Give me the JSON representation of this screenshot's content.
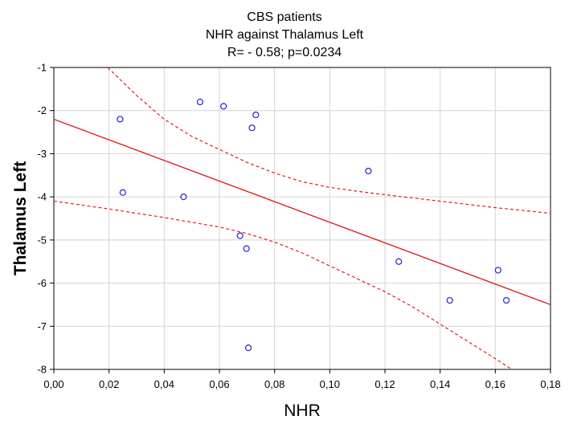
{
  "chart_data": {
    "type": "scatter",
    "title_lines": [
      "CBS patients",
      "NHR against Thalamus Left",
      "R= - 0.58; p=0.0234"
    ],
    "xlabel": "NHR",
    "ylabel": "Thalamus Left",
    "xlim": [
      0.0,
      0.18
    ],
    "ylim": [
      -8,
      -1
    ],
    "x_ticks": [
      0.0,
      0.02,
      0.04,
      0.06,
      0.08,
      0.1,
      0.12,
      0.14,
      0.16,
      0.18
    ],
    "x_tick_labels": [
      "0,00",
      "0,02",
      "0,04",
      "0,06",
      "0,08",
      "0,10",
      "0,12",
      "0,14",
      "0,16",
      "0,18"
    ],
    "y_ticks": [
      -1,
      -2,
      -3,
      -4,
      -5,
      -6,
      -7,
      -8
    ],
    "y_tick_labels": [
      "-1",
      "-2",
      "-3",
      "-4",
      "-5",
      "-6",
      "-7",
      "-8"
    ],
    "grid": true,
    "points": [
      {
        "x": 0.024,
        "y": -2.2
      },
      {
        "x": 0.025,
        "y": -3.9
      },
      {
        "x": 0.047,
        "y": -4.0
      },
      {
        "x": 0.053,
        "y": -1.8
      },
      {
        "x": 0.0615,
        "y": -1.9
      },
      {
        "x": 0.0675,
        "y": -4.9
      },
      {
        "x": 0.0698,
        "y": -5.2
      },
      {
        "x": 0.0705,
        "y": -7.5
      },
      {
        "x": 0.0718,
        "y": -2.4
      },
      {
        "x": 0.0732,
        "y": -2.1
      },
      {
        "x": 0.114,
        "y": -3.4
      },
      {
        "x": 0.125,
        "y": -5.5
      },
      {
        "x": 0.1435,
        "y": -6.4
      },
      {
        "x": 0.161,
        "y": -5.7
      },
      {
        "x": 0.164,
        "y": -6.4
      }
    ],
    "regression_line": [
      {
        "x": 0.0,
        "y": -2.2
      },
      {
        "x": 0.18,
        "y": -6.5
      }
    ],
    "confidence_upper": [
      {
        "x": 0.0195,
        "y": -1.0
      },
      {
        "x": 0.03,
        "y": -1.65
      },
      {
        "x": 0.04,
        "y": -2.2
      },
      {
        "x": 0.05,
        "y": -2.6
      },
      {
        "x": 0.06,
        "y": -2.9
      },
      {
        "x": 0.07,
        "y": -3.2
      },
      {
        "x": 0.08,
        "y": -3.45
      },
      {
        "x": 0.09,
        "y": -3.65
      },
      {
        "x": 0.1,
        "y": -3.78
      },
      {
        "x": 0.11,
        "y": -3.87
      },
      {
        "x": 0.12,
        "y": -3.95
      },
      {
        "x": 0.14,
        "y": -4.1
      },
      {
        "x": 0.16,
        "y": -4.25
      },
      {
        "x": 0.18,
        "y": -4.38
      }
    ],
    "confidence_lower": [
      {
        "x": 0.0,
        "y": -4.1
      },
      {
        "x": 0.02,
        "y": -4.28
      },
      {
        "x": 0.04,
        "y": -4.48
      },
      {
        "x": 0.06,
        "y": -4.7
      },
      {
        "x": 0.07,
        "y": -4.85
      },
      {
        "x": 0.08,
        "y": -5.05
      },
      {
        "x": 0.09,
        "y": -5.3
      },
      {
        "x": 0.1,
        "y": -5.6
      },
      {
        "x": 0.11,
        "y": -5.9
      },
      {
        "x": 0.12,
        "y": -6.2
      },
      {
        "x": 0.13,
        "y": -6.55
      },
      {
        "x": 0.14,
        "y": -6.95
      },
      {
        "x": 0.15,
        "y": -7.35
      },
      {
        "x": 0.16,
        "y": -7.75
      },
      {
        "x": 0.166,
        "y": -8.0
      }
    ],
    "colors": {
      "points": "#2222cc",
      "regression": "#e02020",
      "confidence": "#e02020",
      "grid": "#d4d4d4",
      "axis": "#000000"
    }
  }
}
